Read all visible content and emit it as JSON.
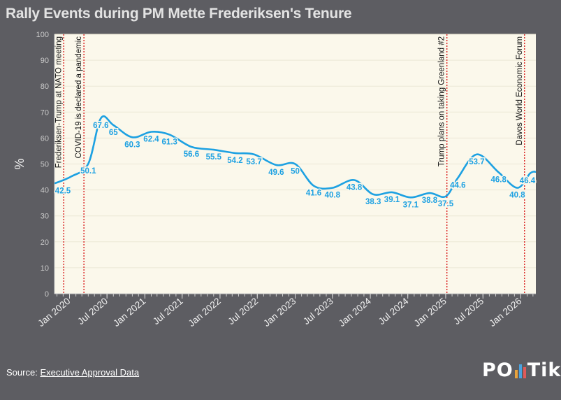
{
  "title": "Rally Events during PM Mette Frederiksen's Tenure",
  "source": {
    "label": "Source:",
    "link_text": "Executive Approval Data"
  },
  "logo": {
    "part1": "PO",
    "part2": "Tik",
    "bar_colors": [
      "#e8a33d",
      "#4aa3df",
      "#e05a5a"
    ]
  },
  "chart_data": {
    "type": "line",
    "title": "Rally Events during PM Mette Frederiksen's Tenure",
    "xlabel": "",
    "ylabel": "%",
    "ylim": [
      0,
      100
    ],
    "yticks": [
      0,
      10,
      20,
      30,
      40,
      50,
      60,
      70,
      80,
      90,
      100
    ],
    "xticks": [
      {
        "date": "2020-01-01",
        "label": "Jan 2020"
      },
      {
        "date": "2020-07-01",
        "label": "Jul 2020"
      },
      {
        "date": "2021-01-01",
        "label": "Jan 2021"
      },
      {
        "date": "2021-07-01",
        "label": "Jul 2021"
      },
      {
        "date": "2022-01-01",
        "label": "Jan 2022"
      },
      {
        "date": "2022-07-01",
        "label": "Jul 2022"
      },
      {
        "date": "2023-01-01",
        "label": "Jan 2023"
      },
      {
        "date": "2023-07-01",
        "label": "Jul 2023"
      },
      {
        "date": "2024-01-01",
        "label": "Jan 2024"
      },
      {
        "date": "2024-07-01",
        "label": "Jul 2024"
      },
      {
        "date": "2025-01-01",
        "label": "Jan 2025"
      },
      {
        "date": "2025-07-01",
        "label": "Jul 2025"
      },
      {
        "date": "2026-01-01",
        "label": "Jan 2026"
      }
    ],
    "xlim": [
      "2019-10-20",
      "2026-03-15"
    ],
    "line_color": "#1da1e2",
    "event_color": "#d91c1c",
    "plot_bg": "#fbf8eb",
    "grid": true,
    "series": [
      {
        "points": [
          {
            "date": "2019-10-20",
            "value": 42.5,
            "label": "42.5"
          },
          {
            "date": "2020-01-10",
            "value": 45.2
          },
          {
            "date": "2020-04-01",
            "value": 50.1,
            "label": "50.1"
          },
          {
            "date": "2020-06-01",
            "value": 67.6,
            "label": "67.6"
          },
          {
            "date": "2020-08-01",
            "value": 65,
            "label": "65"
          },
          {
            "date": "2020-11-01",
            "value": 60.3,
            "label": "60.3"
          },
          {
            "date": "2021-02-01",
            "value": 62.4,
            "label": "62.4"
          },
          {
            "date": "2021-05-01",
            "value": 61.3,
            "label": "61.3"
          },
          {
            "date": "2021-08-15",
            "value": 56.6,
            "label": "56.6"
          },
          {
            "date": "2021-12-01",
            "value": 55.5,
            "label": "55.5"
          },
          {
            "date": "2022-03-15",
            "value": 54.2,
            "label": "54.2"
          },
          {
            "date": "2022-06-15",
            "value": 53.7,
            "label": "53.7"
          },
          {
            "date": "2022-10-01",
            "value": 49.6,
            "label": "49.6"
          },
          {
            "date": "2023-01-01",
            "value": 50,
            "label": "50"
          },
          {
            "date": "2023-04-01",
            "value": 41.6,
            "label": "41.6"
          },
          {
            "date": "2023-07-01",
            "value": 40.8,
            "label": "40.8"
          },
          {
            "date": "2023-10-15",
            "value": 43.8,
            "label": "43.8"
          },
          {
            "date": "2024-01-15",
            "value": 38.3,
            "label": "38.3"
          },
          {
            "date": "2024-04-15",
            "value": 39.1,
            "label": "39.1"
          },
          {
            "date": "2024-07-15",
            "value": 37.1,
            "label": "37.1"
          },
          {
            "date": "2024-10-15",
            "value": 38.8,
            "label": "38.8"
          },
          {
            "date": "2025-01-01",
            "value": 37.5,
            "label": "37.5"
          },
          {
            "date": "2025-03-01",
            "value": 44.6,
            "label": "44.6"
          },
          {
            "date": "2025-06-01",
            "value": 53.7,
            "label": "53.7"
          },
          {
            "date": "2025-09-15",
            "value": 46.8,
            "label": "46.8"
          },
          {
            "date": "2025-12-15",
            "value": 40.8,
            "label": "40.8"
          },
          {
            "date": "2026-02-15",
            "value": 46.4,
            "label": "46.4"
          },
          {
            "date": "2026-03-15",
            "value": 47
          }
        ]
      }
    ],
    "events": [
      {
        "date": "2019-12-04",
        "label": "Frederiksen-Trump at NATO meeting"
      },
      {
        "date": "2020-03-11",
        "label": "COVID-19 is declared a pandemic"
      },
      {
        "date": "2025-01-07",
        "label": "Trump plans on taking Greenland #2"
      },
      {
        "date": "2026-01-19",
        "label": "Davos World Economic Forum"
      }
    ]
  }
}
